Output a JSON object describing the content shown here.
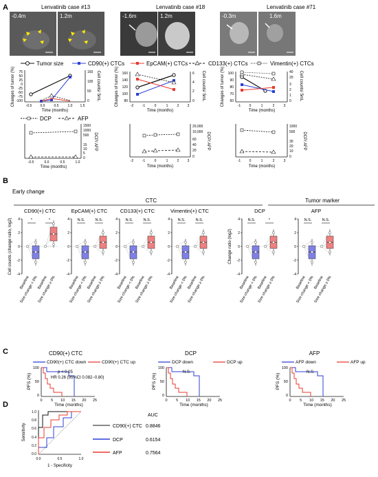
{
  "panel_labels": {
    "a": "A",
    "b": "B",
    "c": "C",
    "d": "D"
  },
  "section_a": {
    "cases": [
      {
        "title": "Lenvatinib case #13",
        "img_labels": [
          "-0.4m",
          "1.2m"
        ]
      },
      {
        "title": "Lenvatinib case #18",
        "img_labels": [
          "-1.6m",
          "1.2m"
        ]
      },
      {
        "title": "Lenvatinib case #71",
        "img_labels": [
          "-0.3m",
          "1.6m"
        ]
      }
    ],
    "legend_top": [
      "Tumor size",
      "CD90(+) CTCs",
      "EpCAM(+) CTCs",
      "CD133(+) CTCs",
      "Vimentin(+) CTCs"
    ],
    "legend_bottom": [
      "DCP",
      "AFP"
    ],
    "ylabel_tumor": "Changes of tumor (%)",
    "ylabel_ctc": "Cell counts/ 5mL",
    "ylabel_marker": "DCP/ AFP",
    "xlabel": "Time (months)",
    "case13": {
      "xticks": [
        "-0.5",
        "0.0",
        "0.5",
        "1.0",
        "1.5"
      ],
      "yticks_left": [
        "75",
        "50",
        "25",
        "0",
        "-25",
        "-50",
        "-75",
        "-100"
      ],
      "yticks_right": [
        "150",
        "100",
        "50",
        "0"
      ],
      "marker_yticks": [
        "1500",
        "1000",
        "500",
        "15",
        "10",
        "5",
        "0"
      ],
      "marker_xticks": [
        "-0.5",
        "0.0",
        "0.5",
        "1.0"
      ]
    },
    "case18": {
      "xticks": [
        "-2",
        "-1",
        "0",
        "1",
        "2",
        "3"
      ],
      "yticks_left": [
        "160",
        "140",
        "120",
        "100",
        "80"
      ],
      "yticks_right": [
        "6",
        "4",
        "2",
        "0"
      ],
      "marker_yticks": [
        "20,000",
        "10,000",
        "60",
        "40",
        "20",
        "0"
      ],
      "marker_xticks": [
        "-2",
        "-1",
        "0",
        "1",
        "2",
        "3"
      ]
    },
    "case71": {
      "xticks": [
        "-1",
        "0",
        "1",
        "2",
        "3"
      ],
      "yticks_left": [
        "100",
        "90",
        "80",
        "70",
        "60"
      ],
      "yticks_right": [
        "40",
        "20",
        "3",
        "2",
        "1",
        "0"
      ],
      "marker_yticks": [
        "1000",
        "500",
        "30",
        "20",
        "10",
        "0"
      ],
      "marker_xticks": [
        "-1",
        "0",
        "1",
        "2",
        "3"
      ]
    }
  },
  "section_b": {
    "subtitle": "Early change",
    "group_ctc": "CTC",
    "group_marker": "Tumor marker",
    "ylabel_ctc": "Cell counts (change ratio, log2)",
    "ylabel_marker": "Change ratio (log2)",
    "xcats": [
      "Baseline",
      "Size change < 0%",
      "Baseline",
      "Size change ≥ 0%"
    ],
    "panels": [
      {
        "title": "CD90(+) CTC",
        "yticks": [
          "4",
          "2",
          "0",
          "-2",
          "-4"
        ],
        "sig": [
          "*",
          "*"
        ]
      },
      {
        "title": "EpCAM(+) CTC",
        "yticks": [
          "4",
          "2",
          "0",
          "-2",
          "-4"
        ],
        "sig": [
          "N.S.",
          "N.S."
        ]
      },
      {
        "title": "CD133(+) CTC",
        "yticks": [
          "4",
          "2",
          "0",
          "-2",
          "-4"
        ],
        "sig": [
          "N.S.",
          "N.S."
        ]
      },
      {
        "title": "Vimentin(+) CTC",
        "yticks": [
          "4",
          "2",
          "0",
          "-2",
          "-4"
        ],
        "sig": [
          "N.S.",
          "N.S."
        ]
      },
      {
        "title": "DCP",
        "yticks": [
          "4",
          "2",
          "0",
          "-2",
          "-4"
        ],
        "sig": [
          "N.S.",
          "*"
        ]
      },
      {
        "title": "AFP",
        "yticks": [
          "4",
          "2",
          "0",
          "-2",
          "-4"
        ],
        "sig": [
          "N.S.",
          "N.S."
        ]
      }
    ]
  },
  "section_c": {
    "ylabel": "PFS (%)",
    "xlabel": "Time (months)",
    "xticks": [
      "0",
      "5",
      "10",
      "15",
      "20",
      "25"
    ],
    "yticks": [
      "100",
      "50",
      "0"
    ],
    "panels": [
      {
        "title": "CD90(+) CTC",
        "legend": [
          "CD90(+) CTC down",
          "CD90(+) CTC up"
        ],
        "stat1": "p < 0.05",
        "stat2": "HR 0.26 (95%CI 0.082−0.80)"
      },
      {
        "title": "DCP",
        "legend": [
          "DCP down",
          "DCP up"
        ],
        "stat1": "N.S.",
        "stat2": ""
      },
      {
        "title": "AFP",
        "legend": [
          "AFP down",
          "AFP up"
        ],
        "stat1": "N.S.",
        "stat2": ""
      }
    ]
  },
  "section_d": {
    "ylabel": "Sensitivity",
    "xlabel": "1 - Specificity",
    "xticks": [
      "0.0",
      "0.5",
      "1.0"
    ],
    "yticks": [
      "1.0",
      "0.8",
      "0.6",
      "0.4",
      "0.2",
      "0.0"
    ],
    "auc_header": "AUC",
    "rows": [
      {
        "label": "CD90(+) CTC",
        "auc": "0.8846"
      },
      {
        "label": "DCP",
        "auc": "0.6154"
      },
      {
        "label": "AFP",
        "auc": "0.7564"
      }
    ]
  },
  "colors": {
    "blue": "#2b3fd6",
    "red": "#e8392e",
    "black": "#111111",
    "grey": "#888888",
    "box_blue": "#7f7fe6",
    "box_red": "#f08080"
  }
}
